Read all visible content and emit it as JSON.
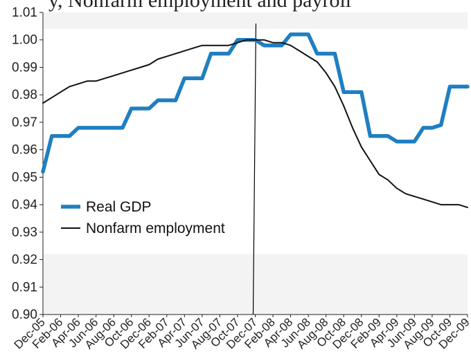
{
  "header": {
    "clipped_text": "y, Nonfarm employment and payroll"
  },
  "colors": {
    "real_gdp": "#1f7fc1",
    "nonfarm": "#111111",
    "band": "#f3f3f3",
    "axis": "#222222"
  },
  "chart_data": {
    "type": "line",
    "title": "",
    "xlabel": "",
    "ylabel": "",
    "ylim": [
      0.9,
      1.01
    ],
    "yticks": [
      "0.90",
      "0.91",
      "0.92",
      "0.93",
      "0.94",
      "0.95",
      "0.96",
      "0.97",
      "0.98",
      "0.99",
      "1.00",
      "1.01"
    ],
    "x_tick_labels": [
      "Dec-05",
      "Feb-06",
      "Apr-06",
      "Jun-06",
      "Aug-06",
      "Oct-06",
      "Dec-06",
      "Feb-07",
      "Apr-07",
      "Jun-07",
      "Aug-07",
      "Oct-07",
      "Dec-07",
      "Feb-08",
      "Apr-08",
      "Jun-08",
      "Aug-08",
      "Oct-08",
      "Dec-08",
      "Feb-09",
      "Apr-09",
      "Jun-09",
      "Aug-09",
      "Oct-09",
      "Dec-09"
    ],
    "x_months": [
      "Dec-05",
      "Jan-06",
      "Feb-06",
      "Mar-06",
      "Apr-06",
      "May-06",
      "Jun-06",
      "Jul-06",
      "Aug-06",
      "Sep-06",
      "Oct-06",
      "Nov-06",
      "Dec-06",
      "Jan-07",
      "Feb-07",
      "Mar-07",
      "Apr-07",
      "May-07",
      "Jun-07",
      "Jul-07",
      "Aug-07",
      "Sep-07",
      "Oct-07",
      "Nov-07",
      "Dec-07",
      "Jan-08",
      "Feb-08",
      "Mar-08",
      "Apr-08",
      "May-08",
      "Jun-08",
      "Jul-08",
      "Aug-08",
      "Sep-08",
      "Oct-08",
      "Nov-08",
      "Dec-08",
      "Jan-09",
      "Feb-09",
      "Mar-09",
      "Apr-09",
      "May-09",
      "Jun-09",
      "Jul-09",
      "Aug-09",
      "Sep-09",
      "Oct-09",
      "Nov-09",
      "Dec-09"
    ],
    "series": [
      {
        "name": "Real GDP",
        "values": [
          0.952,
          0.965,
          0.965,
          0.965,
          0.968,
          0.968,
          0.968,
          0.968,
          0.968,
          0.968,
          0.975,
          0.975,
          0.975,
          0.978,
          0.978,
          0.978,
          0.986,
          0.986,
          0.986,
          0.995,
          0.995,
          0.995,
          1.0,
          1.0,
          1.0,
          0.998,
          0.998,
          0.998,
          1.002,
          1.002,
          1.002,
          0.995,
          0.995,
          0.995,
          0.981,
          0.981,
          0.981,
          0.965,
          0.965,
          0.965,
          0.963,
          0.963,
          0.963,
          0.968,
          0.968,
          0.969,
          0.983,
          0.983,
          0.983
        ]
      },
      {
        "name": "Nonfarm employment",
        "values": [
          0.977,
          0.979,
          0.981,
          0.983,
          0.984,
          0.985,
          0.985,
          0.986,
          0.987,
          0.988,
          0.989,
          0.99,
          0.991,
          0.993,
          0.994,
          0.995,
          0.996,
          0.997,
          0.998,
          0.998,
          0.998,
          0.998,
          0.999,
          1.0,
          1.0,
          1.0,
          0.999,
          0.999,
          0.998,
          0.996,
          0.994,
          0.992,
          0.988,
          0.983,
          0.976,
          0.968,
          0.961,
          0.956,
          0.951,
          0.949,
          0.946,
          0.944,
          0.943,
          0.942,
          0.941,
          0.94,
          0.94,
          0.94,
          0.939
        ]
      }
    ],
    "reference_line": "Dec-07",
    "legend": {
      "position": "middle-left",
      "entries": [
        "Real GDP",
        "Nonfarm employment"
      ]
    },
    "grid": false
  }
}
